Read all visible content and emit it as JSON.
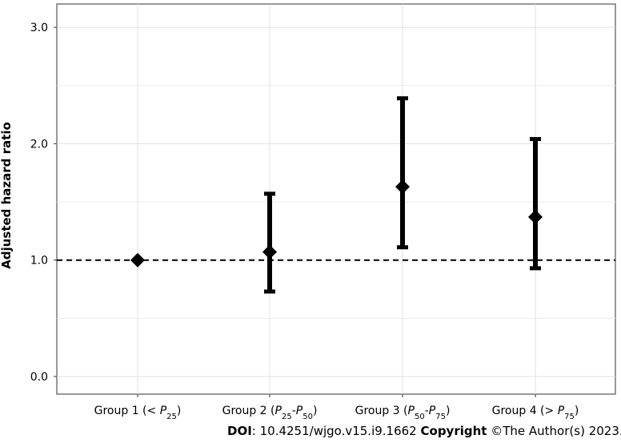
{
  "chart_data": {
    "type": "scatter",
    "title": "",
    "xlabel": "",
    "ylabel": "Adjusted hazard ratio",
    "ylim": [
      0,
      3.2
    ],
    "yticks": [
      "0.0",
      "1.0",
      "2.0",
      "3.0"
    ],
    "grid": true,
    "reference_line": 1.0,
    "categories": [
      {
        "label": "Group 1 (< P25)",
        "prefix": "Group 1 (< ",
        "p1": "P",
        "p1sub": "25",
        "mid": "",
        "p2": "",
        "p2sub": "",
        "suffix": ")"
      },
      {
        "label": "Group 2 (P25-P50)",
        "prefix": "Group 2 (",
        "p1": "P",
        "p1sub": "25",
        "mid": "-",
        "p2": "P",
        "p2sub": "50",
        "suffix": ")"
      },
      {
        "label": "Group 3 (P50-P75)",
        "prefix": "Group 3 (",
        "p1": "P",
        "p1sub": "50",
        "mid": "-",
        "p2": "P",
        "p2sub": "75",
        "suffix": ")"
      },
      {
        "label": "Group 4 (> P75)",
        "prefix": "Group 4 (> ",
        "p1": "P",
        "p1sub": "75",
        "mid": "",
        "p2": "",
        "p2sub": "",
        "suffix": ")"
      }
    ],
    "series": [
      {
        "estimates": [
          1.0,
          1.07,
          1.63,
          1.37
        ],
        "lower": [
          null,
          0.73,
          1.11,
          0.93
        ],
        "upper": [
          null,
          1.57,
          2.39,
          2.04
        ]
      }
    ]
  },
  "footer": {
    "doi_label": "DOI",
    "doi_value": ": 10.4251/wjgo.v15.i9.1662 ",
    "copyright_label": "Copyright",
    "copyright_value": " ©The Author(s) 2023."
  }
}
